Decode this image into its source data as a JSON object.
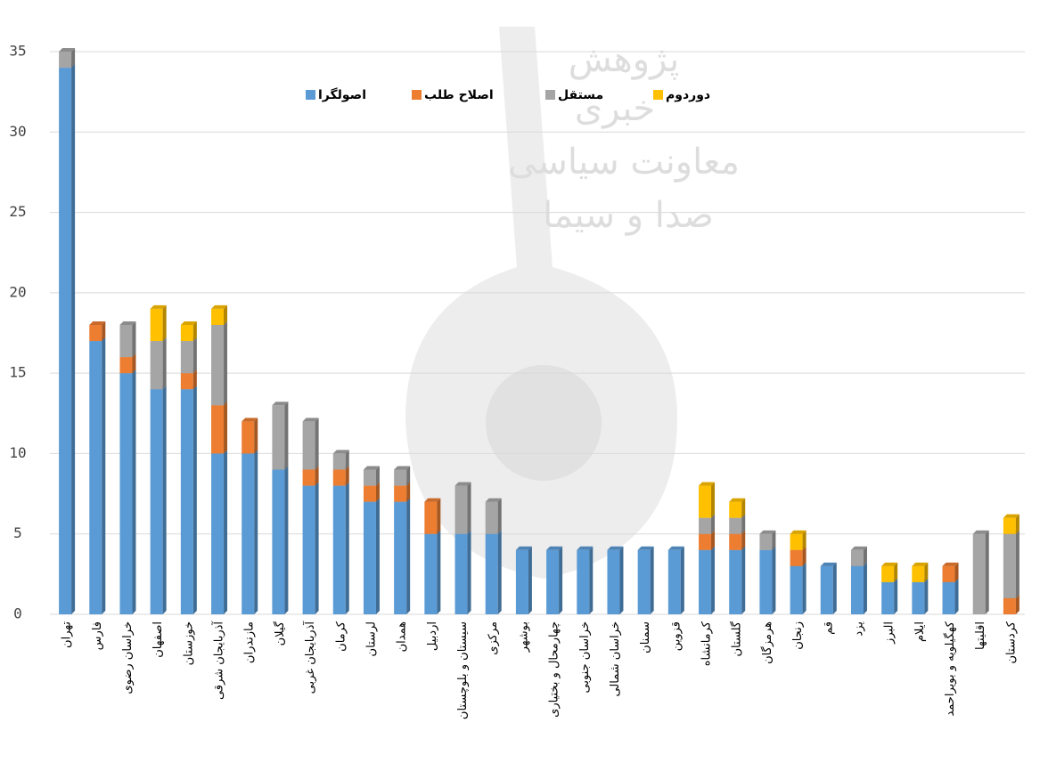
{
  "chart_data": {
    "type": "stacked_bar",
    "watermark": [
      "پژوهش",
      "خبری",
      "معاونت سیاسی",
      "صدا و سیما"
    ],
    "categories": [
      "تهران",
      "فارس",
      "خراسان رضوی",
      "اصفهان",
      "خوزستان",
      "آذربایجان شرقی",
      "مازندران",
      "گیلان",
      "آذربایجان غربی",
      "کرمان",
      "لرستان",
      "همدان",
      "اردبیل",
      "سیستان و بلوچستان",
      "مرکزی",
      "بوشهر",
      "چهارمحال و بختیاری",
      "خراسان جنوبی",
      "خراسان شمالی",
      "سمنان",
      "قزوین",
      "کرمانشاه",
      "گلستان",
      "هرمزگان",
      "زنجان",
      "قم",
      "یزد",
      "البرز",
      "ایلام",
      "کهگیلویه و بویراحمد",
      "اقلیتها",
      "کردستان"
    ],
    "series": [
      {
        "name": "اصولگرا",
        "color": "#5b9bd5",
        "values": [
          34,
          17,
          15,
          14,
          14,
          10,
          10,
          9,
          8,
          8,
          7,
          7,
          5,
          5,
          5,
          4,
          4,
          4,
          4,
          4,
          4,
          4,
          4,
          4,
          3,
          3,
          3,
          2,
          2,
          2,
          0,
          0
        ]
      },
      {
        "name": "اصلاح طلب",
        "color": "#ed7d31",
        "values": [
          0,
          1,
          1,
          0,
          1,
          3,
          2,
          0,
          1,
          1,
          1,
          1,
          2,
          0,
          0,
          0,
          0,
          0,
          0,
          0,
          0,
          1,
          1,
          0,
          1,
          0,
          0,
          0,
          0,
          1,
          0,
          1
        ]
      },
      {
        "name": "مستقل",
        "color": "#a5a5a5",
        "values": [
          1,
          0,
          2,
          3,
          2,
          5,
          0,
          4,
          3,
          1,
          1,
          1,
          0,
          3,
          2,
          0,
          0,
          0,
          0,
          0,
          0,
          1,
          1,
          1,
          0,
          0,
          1,
          0,
          0,
          0,
          5,
          4
        ]
      },
      {
        "name": "دوردوم",
        "color": "#ffc000",
        "values": [
          0,
          0,
          0,
          2,
          1,
          1,
          0,
          0,
          0,
          0,
          0,
          0,
          0,
          0,
          0,
          0,
          0,
          0,
          0,
          0,
          0,
          2,
          1,
          0,
          1,
          0,
          0,
          1,
          1,
          0,
          0,
          1
        ]
      }
    ],
    "ylim": [
      0,
      35
    ],
    "yticks": [
      0,
      5,
      10,
      15,
      20,
      25,
      30,
      35
    ],
    "grid": true,
    "legend": "top"
  }
}
